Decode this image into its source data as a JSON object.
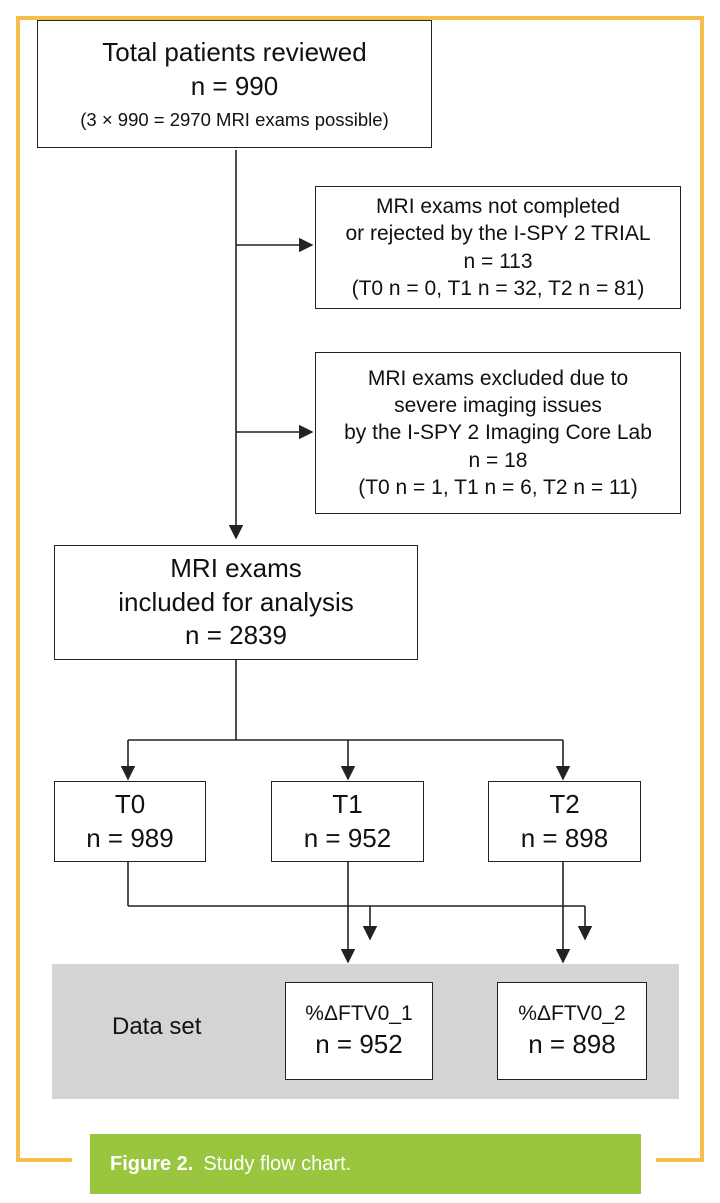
{
  "colors": {
    "frame": "#f5c04a",
    "caption_bg": "#9ac53f",
    "dataset_bg": "#d4d4d4",
    "line": "#222222"
  },
  "boxes": {
    "total": {
      "title": "Total patients reviewed",
      "n": "n = 990",
      "note": "(3 × 990 = 2970 MRI exams possible)"
    },
    "rejected": {
      "l1": "MRI exams not completed",
      "l2": "or rejected by the I-SPY 2 TRIAL",
      "n": "n = 113",
      "breakdown": "(T0 n = 0, T1 n = 32, T2 n = 81)"
    },
    "excluded": {
      "l1": "MRI exams excluded due to",
      "l2": "severe imaging issues",
      "l3": "by the I-SPY 2 Imaging Core Lab",
      "n": "n = 18",
      "breakdown": "(T0 n = 1, T1 n = 6, T2 n = 11)"
    },
    "included": {
      "l1": "MRI exams",
      "l2": "included for analysis",
      "n": "n = 2839"
    },
    "t0": {
      "label": "T0",
      "n": "n = 989"
    },
    "t1": {
      "label": "T1",
      "n": "n = 952"
    },
    "t2": {
      "label": "T2",
      "n": "n = 898"
    }
  },
  "dataset": {
    "label": "Data set",
    "set1": {
      "label": "%ΔFTV0_1",
      "n": "n = 952"
    },
    "set2": {
      "label": "%ΔFTV0_2",
      "n": "n = 898"
    }
  },
  "caption": {
    "figure": "Figure 2.",
    "text": "Study flow chart."
  }
}
